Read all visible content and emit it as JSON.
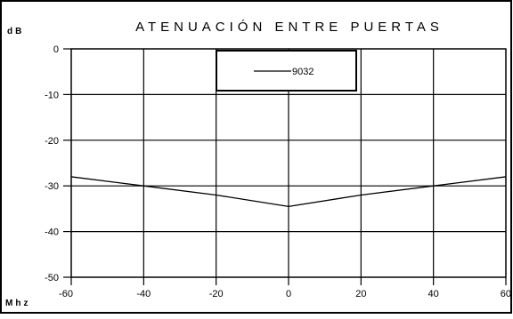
{
  "chart_data": {
    "type": "line",
    "title": "ATENUACIÓN ENTRE PUERTAS",
    "ylabel": "dB",
    "xlabel": "Mhz",
    "xlim": [
      -60,
      60
    ],
    "ylim": [
      -50,
      0
    ],
    "x_ticks": [
      -60,
      -40,
      -20,
      0,
      20,
      40,
      60
    ],
    "y_ticks": [
      0,
      -10,
      -20,
      -30,
      -40,
      -50
    ],
    "x_tick_labels": [
      "-60",
      "-40",
      "-20",
      "0",
      "20",
      "40",
      "60"
    ],
    "y_tick_labels": [
      "0",
      "-10",
      "-20",
      "-30",
      "-40",
      "-50"
    ],
    "grid": true,
    "legend_position": "top-center",
    "series": [
      {
        "name": "9032",
        "color": "#000000",
        "x": [
          -60,
          -40,
          -20,
          0,
          20,
          40,
          60
        ],
        "y": [
          -28,
          -30,
          -32,
          -34.5,
          -32,
          -30,
          -28
        ]
      }
    ]
  }
}
